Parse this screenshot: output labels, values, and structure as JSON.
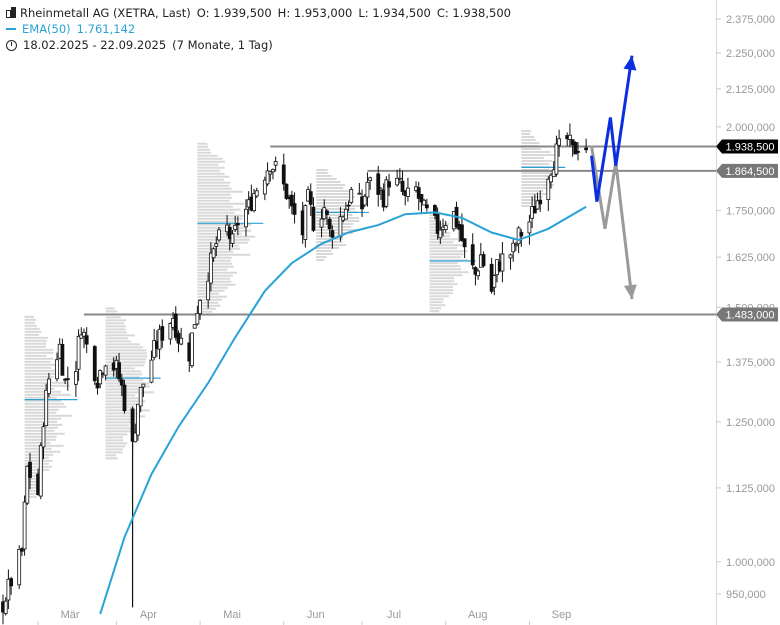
{
  "legend": {
    "symbol": "Rheinmetall AG (XETRA, Last)",
    "open": "O: 1.939,500",
    "high": "H: 1.953,000",
    "low": "L: 1.934,500",
    "close": "C: 1.938,500",
    "ema_label": "EMA(50)",
    "ema_value": "1.761,142",
    "range": "18.02.2025 - 22.09.2025",
    "period": "(7 Monate, 1 Tag)"
  },
  "colors": {
    "candle": "#111111",
    "ema": "#29a3d6",
    "level": "#888888",
    "price_tag": "#000000",
    "level_tag": "#777777",
    "arrow_up": "#0a2ee0",
    "arrow_down": "#9a9a9a",
    "volume_profile": "#b8b8b8"
  },
  "chart_data": {
    "type": "candlestick",
    "y_scale": "log",
    "ylim": [
      920,
      2450
    ],
    "y_ticks": [
      "950,000",
      "1.000,000",
      "1.125,000",
      "1.250,000",
      "1.375,000",
      "1.500,000",
      "1.625,000",
      "1.750,000",
      "2.000,000",
      "2.125,000",
      "2.250,000",
      "2.375,000"
    ],
    "x_labels": [
      "Mär",
      "Apr",
      "Mai",
      "Jun",
      "Jul",
      "Aug",
      "Sep"
    ],
    "price_tags": [
      {
        "value": 1938.5,
        "label": "1.938,500",
        "kind": "last"
      },
      {
        "value": 1864.5,
        "label": "1.864,500",
        "kind": "level"
      },
      {
        "value": 1483.0,
        "label": "1.483,000",
        "kind": "level"
      }
    ],
    "horizontal_levels": [
      {
        "value": 1938.5,
        "from": "2025-05-28"
      },
      {
        "value": 1864.5,
        "from": "2025-07-03"
      },
      {
        "value": 1483.0,
        "from": "2025-03-20"
      }
    ],
    "close_path": [
      [
        "2025-02-18",
        935
      ],
      [
        "2025-02-21",
        970
      ],
      [
        "2025-02-25",
        1015
      ],
      [
        "2025-02-27",
        1160
      ],
      [
        "2025-03-03",
        1115
      ],
      [
        "2025-03-05",
        1260
      ],
      [
        "2025-03-07",
        1340
      ],
      [
        "2025-03-11",
        1410
      ],
      [
        "2025-03-13",
        1330
      ],
      [
        "2025-03-17",
        1370
      ],
      [
        "2025-03-19",
        1460
      ],
      [
        "2025-03-21",
        1410
      ],
      [
        "2025-03-25",
        1340
      ],
      [
        "2025-03-28",
        1385
      ],
      [
        "2025-04-01",
        1360
      ],
      [
        "2025-04-03",
        1320
      ],
      [
        "2025-04-07",
        1200
      ],
      [
        "2025-04-09",
        1290
      ],
      [
        "2025-04-11",
        1330
      ],
      [
        "2025-04-15",
        1400
      ],
      [
        "2025-04-17",
        1430
      ],
      [
        "2025-04-22",
        1480
      ],
      [
        "2025-04-24",
        1430
      ],
      [
        "2025-04-28",
        1395
      ],
      [
        "2025-04-30",
        1470
      ],
      [
        "2025-05-02",
        1530
      ],
      [
        "2025-05-06",
        1610
      ],
      [
        "2025-05-08",
        1660
      ],
      [
        "2025-05-12",
        1700
      ],
      [
        "2025-05-14",
        1660
      ],
      [
        "2025-05-16",
        1720
      ],
      [
        "2025-05-20",
        1760
      ],
      [
        "2025-05-22",
        1800
      ],
      [
        "2025-05-26",
        1860
      ],
      [
        "2025-05-28",
        1890
      ],
      [
        "2025-05-30",
        1870
      ],
      [
        "2025-06-03",
        1800
      ],
      [
        "2025-06-05",
        1750
      ],
      [
        "2025-06-09",
        1690
      ],
      [
        "2025-06-11",
        1780
      ],
      [
        "2025-06-13",
        1720
      ],
      [
        "2025-06-17",
        1760
      ],
      [
        "2025-06-19",
        1690
      ],
      [
        "2025-06-23",
        1730
      ],
      [
        "2025-06-25",
        1760
      ],
      [
        "2025-06-27",
        1800
      ],
      [
        "2025-07-01",
        1760
      ],
      [
        "2025-07-03",
        1830
      ],
      [
        "2025-07-07",
        1810
      ],
      [
        "2025-07-09",
        1790
      ],
      [
        "2025-07-11",
        1840
      ],
      [
        "2025-07-15",
        1820
      ],
      [
        "2025-07-17",
        1780
      ],
      [
        "2025-07-21",
        1810
      ],
      [
        "2025-07-23",
        1760
      ],
      [
        "2025-07-25",
        1740
      ],
      [
        "2025-07-29",
        1700
      ],
      [
        "2025-07-31",
        1720
      ],
      [
        "2025-08-04",
        1740
      ],
      [
        "2025-08-06",
        1700
      ],
      [
        "2025-08-08",
        1640
      ],
      [
        "2025-08-12",
        1580
      ],
      [
        "2025-08-14",
        1630
      ],
      [
        "2025-08-18",
        1540
      ],
      [
        "2025-08-20",
        1600
      ],
      [
        "2025-08-22",
        1620
      ],
      [
        "2025-08-26",
        1640
      ],
      [
        "2025-08-28",
        1680
      ],
      [
        "2025-09-01",
        1720
      ],
      [
        "2025-09-03",
        1760
      ],
      [
        "2025-09-05",
        1800
      ],
      [
        "2025-09-09",
        1880
      ],
      [
        "2025-09-11",
        1920
      ],
      [
        "2025-09-15",
        1960
      ],
      [
        "2025-09-17",
        1920
      ],
      [
        "2025-09-19",
        1945
      ],
      [
        "2025-09-22",
        1938.5
      ]
    ],
    "ema50": [
      [
        "2025-03-26",
        920
      ],
      [
        "2025-04-04",
        1040
      ],
      [
        "2025-04-14",
        1150
      ],
      [
        "2025-04-24",
        1240
      ],
      [
        "2025-05-05",
        1330
      ],
      [
        "2025-05-15",
        1430
      ],
      [
        "2025-05-26",
        1540
      ],
      [
        "2025-06-05",
        1610
      ],
      [
        "2025-06-16",
        1660
      ],
      [
        "2025-06-26",
        1690
      ],
      [
        "2025-07-07",
        1710
      ],
      [
        "2025-07-17",
        1740
      ],
      [
        "2025-07-28",
        1745
      ],
      [
        "2025-08-07",
        1730
      ],
      [
        "2025-08-18",
        1690
      ],
      [
        "2025-08-28",
        1670
      ],
      [
        "2025-09-08",
        1700
      ],
      [
        "2025-09-22",
        1761.142
      ]
    ],
    "scenario_up": [
      [
        "2025-09-24",
        1910
      ],
      [
        "2025-09-26",
        1775
      ],
      [
        "2025-10-01",
        2030
      ],
      [
        "2025-10-03",
        1880
      ],
      [
        "2025-10-09",
        2240
      ]
    ],
    "scenario_down": [
      [
        "2025-09-24",
        1940
      ],
      [
        "2025-09-29",
        1700
      ],
      [
        "2025-10-03",
        1890
      ],
      [
        "2025-10-09",
        1520
      ]
    ]
  }
}
